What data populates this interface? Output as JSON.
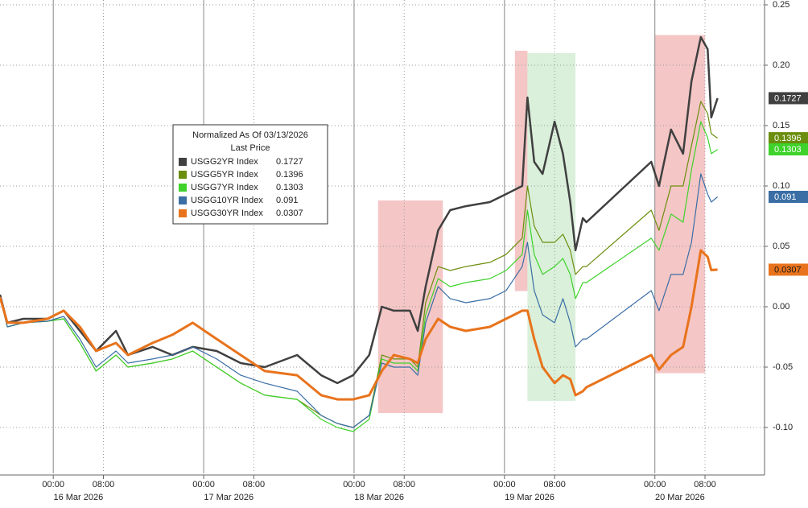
{
  "chart_data": {
    "type": "line",
    "legend_title": "Normalized As Of 03/13/2026",
    "legend_subtitle": "Last Price",
    "x": [
      "2026-03-15T15:30",
      "2026-03-15T16:40",
      "2026-03-15T19:15",
      "2026-03-15T23:05",
      "2026-03-16T01:40",
      "2026-03-16T04:15",
      "2026-03-16T06:50",
      "2026-03-16T10:00",
      "2026-03-16T11:55",
      "2026-03-16T15:50",
      "2026-03-16T19:00",
      "2026-03-16T22:15",
      "2026-03-17T02:05",
      "2026-03-17T05:55",
      "2026-03-17T09:45",
      "2026-03-17T14:55",
      "2026-03-17T18:45",
      "2026-03-17T21:20",
      "2026-03-17T23:50",
      "2026-03-18T02:25",
      "2026-03-18T04:25",
      "2026-03-18T06:20",
      "2026-03-18T08:55",
      "2026-03-18T10:10",
      "2026-03-18T11:25",
      "2026-03-18T13:25",
      "2026-03-18T15:20",
      "2026-03-18T17:50",
      "2026-03-18T21:40",
      "2026-03-19T00:15",
      "2026-03-19T02:50",
      "2026-03-19T03:40",
      "2026-03-19T04:45",
      "2026-03-19T06:05",
      "2026-03-19T08:00",
      "2026-03-19T09:20",
      "2026-03-19T10:30",
      "2026-03-19T11:20",
      "2026-03-19T12:30",
      "2026-03-19T13:05",
      "2026-03-19T23:25",
      "2026-03-20T00:40",
      "2026-03-20T02:35",
      "2026-03-20T04:30",
      "2026-03-20T05:50",
      "2026-03-20T07:20",
      "2026-03-20T08:25",
      "2026-03-20T09:00",
      "2026-03-20T10:00"
    ],
    "series": [
      {
        "name": "USGG2YR Index",
        "color": "#404040",
        "text_color": "#ffffff",
        "width": 2.5,
        "values": [
          0.01,
          -0.0133,
          -0.01,
          -0.01,
          -0.0033,
          -0.02,
          -0.0367,
          -0.02,
          -0.04,
          -0.0333,
          -0.04,
          -0.0333,
          -0.0367,
          -0.0467,
          -0.05,
          -0.04,
          -0.0567,
          -0.0633,
          -0.0567,
          -0.04,
          0,
          -0.0033,
          -0.0033,
          -0.02,
          0.0167,
          0.0633,
          0.08,
          0.0833,
          0.0867,
          0.0933,
          0.1,
          0.1733,
          0.12,
          0.11,
          0.1533,
          0.1267,
          0.0867,
          0.0467,
          0.0733,
          0.07,
          0.12,
          0.1,
          0.1467,
          0.1267,
          0.1867,
          0.2233,
          0.2133,
          0.1567,
          0.1727
        ]
      },
      {
        "name": "USGG5YR Index",
        "color": "#6b8e0e",
        "text_color": "#ffffff",
        "width": 1.2,
        "values": [
          0.008,
          -0.0167,
          -0.0133,
          -0.012,
          -0.01,
          -0.03,
          -0.0533,
          -0.04,
          -0.05,
          -0.0467,
          -0.0433,
          -0.0367,
          -0.05,
          -0.0633,
          -0.0733,
          -0.0767,
          -0.09,
          -0.0967,
          -0.1,
          -0.09,
          -0.04,
          -0.0433,
          -0.0433,
          -0.05,
          0.0033,
          0.0333,
          0.03,
          0.0333,
          0.0367,
          0.0433,
          0.0567,
          0.1,
          0.0667,
          0.0533,
          0.0533,
          0.06,
          0.0467,
          0.0267,
          0.0333,
          0.0333,
          0.08,
          0.0633,
          0.1,
          0.1,
          0.1333,
          0.17,
          0.16,
          0.1433,
          0.1396
        ]
      },
      {
        "name": "USGG7YR Index",
        "color": "#3ed22a",
        "text_color": "#ffffff",
        "width": 1.2,
        "values": [
          0.008,
          -0.0167,
          -0.0133,
          -0.012,
          -0.01,
          -0.03,
          -0.0533,
          -0.04,
          -0.05,
          -0.0467,
          -0.0433,
          -0.0367,
          -0.05,
          -0.0633,
          -0.0733,
          -0.0767,
          -0.0933,
          -0.1,
          -0.1033,
          -0.0933,
          -0.0433,
          -0.0467,
          -0.0467,
          -0.0533,
          -0.0067,
          0.0233,
          0.0167,
          0.02,
          0.0233,
          0.03,
          0.0433,
          0.08,
          0.0433,
          0.0267,
          0.0333,
          0.04,
          0.0267,
          0.0067,
          0.02,
          0.02,
          0.0567,
          0.0467,
          0.0767,
          0.07,
          0.1133,
          0.1533,
          0.14,
          0.1267,
          0.1303
        ]
      },
      {
        "name": "USGG10YR Index",
        "color": "#3a6ea5",
        "text_color": "#ffffff",
        "width": 1.2,
        "values": [
          0.008,
          -0.0167,
          -0.0133,
          -0.012,
          -0.008,
          -0.0267,
          -0.05,
          -0.0367,
          -0.0467,
          -0.0433,
          -0.04,
          -0.0333,
          -0.0433,
          -0.0567,
          -0.0633,
          -0.07,
          -0.09,
          -0.0967,
          -0.1,
          -0.09,
          -0.0467,
          -0.05,
          -0.05,
          -0.0567,
          -0.0133,
          0.0167,
          0.0067,
          0.0033,
          0.0067,
          0.0133,
          0.0333,
          0.0533,
          0.0133,
          -0.0067,
          -0.0133,
          0.0067,
          -0.0133,
          -0.0333,
          -0.0267,
          -0.0267,
          0.0133,
          -0.0033,
          0.0267,
          0.0267,
          0.0533,
          0.11,
          0.0933,
          0.0867,
          0.091
        ]
      },
      {
        "name": "USGG30YR Index",
        "color": "#e8731c",
        "text_color": "#1a1a1a",
        "width": 3,
        "values": [
          0.008,
          -0.0133,
          -0.0133,
          -0.01,
          -0.0033,
          -0.0167,
          -0.0367,
          -0.03,
          -0.04,
          -0.03,
          -0.0233,
          -0.0133,
          -0.0267,
          -0.04,
          -0.0533,
          -0.0567,
          -0.0733,
          -0.0767,
          -0.0767,
          -0.0733,
          -0.0533,
          -0.04,
          -0.0433,
          -0.0467,
          -0.0267,
          -0.01,
          -0.0167,
          -0.02,
          -0.0167,
          -0.01,
          -0.0033,
          -0.0033,
          -0.0267,
          -0.05,
          -0.0633,
          -0.0567,
          -0.06,
          -0.0733,
          -0.07,
          -0.0667,
          -0.04,
          -0.052,
          -0.04,
          -0.0333,
          0,
          0.0467,
          0.0413,
          0.0303,
          0.0307
        ]
      }
    ],
    "highlights": [
      {
        "color": "#f2b3b3",
        "xlim": [
          "2026-03-18T03:50",
          "2026-03-18T14:10"
        ],
        "ylim": [
          -0.088,
          0.088
        ]
      },
      {
        "color": "#f2b3b3",
        "xlim": [
          "2026-03-19T01:40",
          "2026-03-19T03:40"
        ],
        "ylim": [
          0.013,
          0.212
        ]
      },
      {
        "color": "#cdebcd",
        "xlim": [
          "2026-03-19T03:40",
          "2026-03-19T11:20"
        ],
        "ylim": [
          -0.078,
          0.21
        ]
      },
      {
        "color": "#f2b3b3",
        "xlim": [
          "2026-03-20T00:00",
          "2026-03-20T08:00"
        ],
        "ylim": [
          -0.055,
          0.225
        ]
      }
    ],
    "xlim": [
      "2026-03-15T15:30",
      "2026-03-20T17:30"
    ],
    "xticks": [
      {
        "value": "2026-03-16T00:00",
        "label": "00:00"
      },
      {
        "value": "2026-03-16T08:00",
        "label": "08:00"
      },
      {
        "value": "2026-03-17T00:00",
        "label": "00:00"
      },
      {
        "value": "2026-03-17T08:00",
        "label": "08:00"
      },
      {
        "value": "2026-03-18T00:00",
        "label": "00:00"
      },
      {
        "value": "2026-03-18T08:00",
        "label": "08:00"
      },
      {
        "value": "2026-03-19T00:00",
        "label": "00:00"
      },
      {
        "value": "2026-03-19T08:00",
        "label": "08:00"
      },
      {
        "value": "2026-03-20T00:00",
        "label": "00:00"
      },
      {
        "value": "2026-03-20T08:00",
        "label": "08:00"
      }
    ],
    "xtick_dates": [
      {
        "value": "2026-03-16T04:00",
        "label": "16 Mar 2026"
      },
      {
        "value": "2026-03-17T04:00",
        "label": "17 Mar 2026"
      },
      {
        "value": "2026-03-18T04:00",
        "label": "18 Mar 2026"
      },
      {
        "value": "2026-03-19T04:00",
        "label": "19 Mar 2026"
      },
      {
        "value": "2026-03-20T04:00",
        "label": "20 Mar 2026"
      }
    ],
    "ylim": [
      -0.138,
      0.254
    ],
    "yticks": [
      0.25,
      {
        "value": 0.2,
        "label": "0.20"
      },
      0.15,
      {
        "value": 0.1,
        "label": "0.10"
      },
      0.05,
      {
        "value": 0,
        "label": "0.00"
      },
      -0.05,
      {
        "value": -0.1,
        "label": "-0.10"
      }
    ],
    "grid": true
  }
}
